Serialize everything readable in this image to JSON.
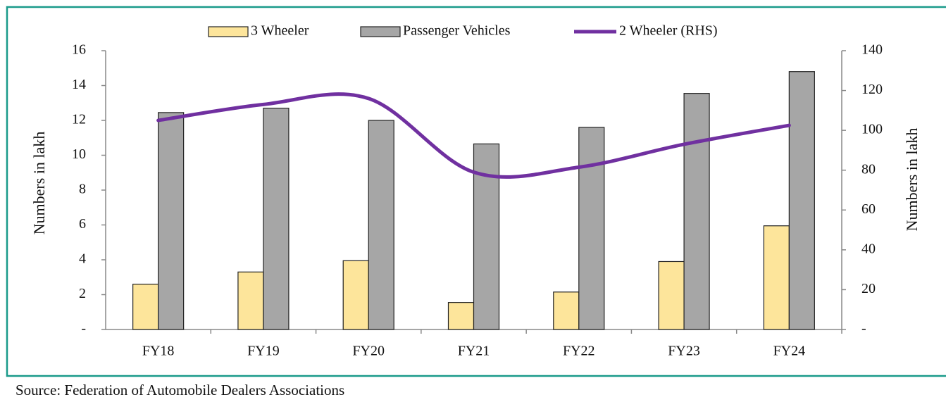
{
  "chart_data": {
    "type": "bar_line",
    "categories": [
      "FY18",
      "FY19",
      "FY20",
      "FY21",
      "FY22",
      "FY23",
      "FY24"
    ],
    "series": [
      {
        "name": "3 Wheeler",
        "color": "#fde59b",
        "values": [
          2.6,
          3.3,
          3.95,
          1.55,
          2.15,
          3.9,
          5.95
        ]
      },
      {
        "name": "Passenger Vehicles",
        "color": "#a6a6a6",
        "values": [
          12.45,
          12.7,
          12.0,
          10.65,
          11.6,
          13.55,
          14.8
        ]
      },
      {
        "name": "2 Wheeler (RHS)",
        "color": "#7030a0",
        "axis": "y2",
        "values": [
          105,
          113,
          116,
          79,
          81.5,
          93,
          102.5
        ]
      }
    ],
    "ylabel": "Numbers in lakh",
    "y2label": "Numbers in lakh",
    "ylim": [
      0,
      16
    ],
    "yticks": [
      {
        "value": 0,
        "label": "-"
      },
      2,
      4,
      6,
      8,
      10,
      12,
      14,
      16
    ],
    "y2lim": [
      0,
      140
    ],
    "y2ticks": [
      {
        "value": 0,
        "label": "-"
      },
      20,
      40,
      60,
      80,
      100,
      120,
      140
    ],
    "grid": false,
    "legend": "top",
    "source": "Source: Federation of Automobile Dealers Associations"
  }
}
